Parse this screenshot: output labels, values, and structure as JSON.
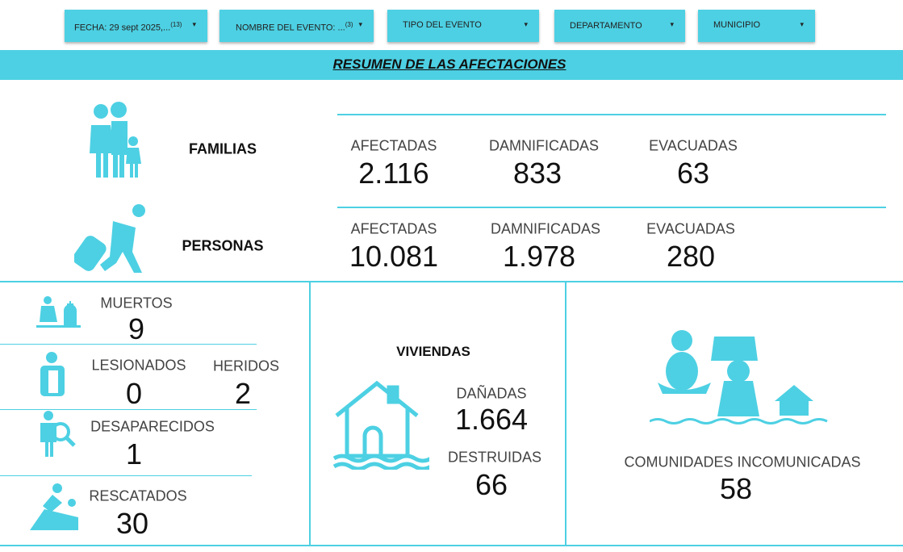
{
  "filters": [
    {
      "label": "FECHA: 29 sept 2025,...",
      "count": "(13)"
    },
    {
      "label": "NOMBRE DEL EVENTO: ...",
      "count": "(3)"
    },
    {
      "label": "TIPO DEL EVENTO"
    },
    {
      "label": "DEPARTAMENTO"
    },
    {
      "label": "MUNICIPIO"
    }
  ],
  "title": "RESUMEN DE LAS AFECTACIONES",
  "familias": {
    "label": "FAMILIAS",
    "stats": [
      {
        "label": "AFECTADAS",
        "value": "2.116"
      },
      {
        "label": "DAMNIFICADAS",
        "value": "833"
      },
      {
        "label": "EVACUADAS",
        "value": "63"
      }
    ]
  },
  "personas": {
    "label": "PERSONAS",
    "stats": [
      {
        "label": "AFECTADAS",
        "value": "10.081"
      },
      {
        "label": "DAMNIFICADAS",
        "value": "1.978"
      },
      {
        "label": "EVACUADAS",
        "value": "280"
      }
    ]
  },
  "muertos": {
    "label": "MUERTOS",
    "value": "9"
  },
  "lesionados": {
    "label": "LESIONADOS",
    "value": "0"
  },
  "heridos": {
    "label": "HERIDOS",
    "value": "2"
  },
  "desaparecidos": {
    "label": "DESAPARECIDOS",
    "value": "1"
  },
  "rescatados": {
    "label": "RESCATADOS",
    "value": "30"
  },
  "viviendas": {
    "label": "VIVIENDAS",
    "danadas": {
      "label": "DAÑADAS",
      "value": "1.664"
    },
    "destruidas": {
      "label": "DESTRUIDAS",
      "value": "66"
    }
  },
  "comunidades": {
    "label": "COMUNIDADES INCOMUNICADAS",
    "value": "58"
  }
}
